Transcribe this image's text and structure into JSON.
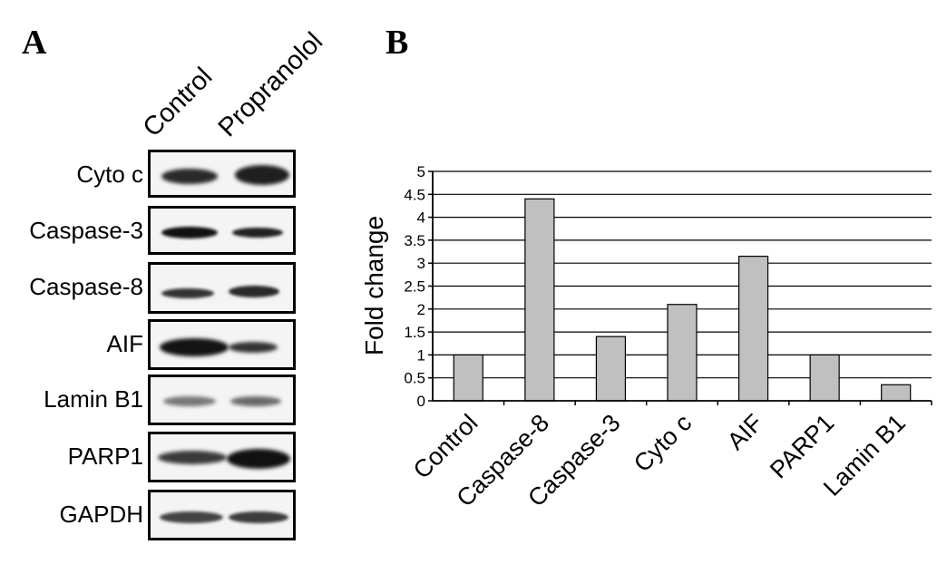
{
  "panels": {
    "a_label": "A",
    "b_label": "B"
  },
  "blot": {
    "lanes": [
      "Control",
      "Propranolol"
    ],
    "rows": [
      {
        "label": "Cyto c"
      },
      {
        "label": "Caspase-3"
      },
      {
        "label": "Caspase-8"
      },
      {
        "label": "AIF"
      },
      {
        "label": "Lamin B1"
      },
      {
        "label": "PARP1"
      },
      {
        "label": "GAPDH"
      }
    ]
  },
  "chart_data": {
    "type": "bar",
    "categories": [
      "Control",
      "Caspase-8",
      "Caspase-3",
      "Cyto c",
      "AIF",
      "PARP1",
      "Lamin B1"
    ],
    "values": [
      1.0,
      4.4,
      1.4,
      2.1,
      3.15,
      1.0,
      0.35
    ],
    "title": "",
    "xlabel": "",
    "ylabel": "Fold change",
    "ylim": [
      0,
      5
    ],
    "yticks": [
      0,
      0.5,
      1,
      1.5,
      2,
      2.5,
      3,
      3.5,
      4,
      4.5,
      5
    ],
    "grid": true,
    "bar_color": "#c0c0c0"
  }
}
